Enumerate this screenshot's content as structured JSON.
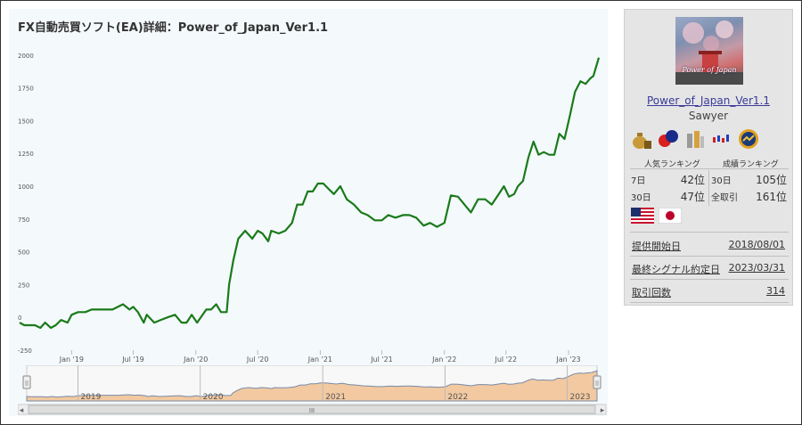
{
  "chart": {
    "title": "FX自動売買ソフト(EA)詳細：Power_of_Japan_Ver1.1",
    "line_color": "#1a7a1a"
  },
  "chart_data": {
    "type": "line",
    "title": "FX自動売買ソフト(EA)詳細：Power_of_Japan_Ver1.1",
    "xlabel": "",
    "ylabel": "",
    "y_ticks": [
      -250,
      0,
      250,
      500,
      750,
      1000,
      1250,
      1500,
      1750,
      2000
    ],
    "ylim": [
      -250,
      2080
    ],
    "x_ticks": [
      "Jan '19",
      "Jul '19",
      "Jan '20",
      "Jul '20",
      "Jan '21",
      "Jul '21",
      "Jan '22",
      "Jul '22",
      "Jan '23"
    ],
    "xlim": [
      "2018-08-01",
      "2023-03-31"
    ],
    "grid": false,
    "series": [
      {
        "x": [
          "2018-08-01",
          "2018-08-15",
          "2018-09-15",
          "2018-10-01",
          "2018-10-15",
          "2018-11-01",
          "2018-11-15",
          "2018-12-01",
          "2018-12-20",
          "2019-01-01",
          "2019-01-20",
          "2019-02-10",
          "2019-03-01",
          "2019-03-20",
          "2019-04-10",
          "2019-05-01",
          "2019-06-01",
          "2019-06-20",
          "2019-07-01",
          "2019-07-15",
          "2019-08-01",
          "2019-08-10",
          "2019-09-01",
          "2019-09-20",
          "2019-10-10",
          "2019-11-01",
          "2019-11-20",
          "2019-12-05",
          "2019-12-20",
          "2020-01-05",
          "2020-02-01",
          "2020-02-15",
          "2020-03-01",
          "2020-03-15",
          "2020-04-01",
          "2020-04-08",
          "2020-04-20",
          "2020-05-05",
          "2020-05-25",
          "2020-06-15",
          "2020-07-01",
          "2020-07-15",
          "2020-08-01",
          "2020-08-10",
          "2020-09-01",
          "2020-09-20",
          "2020-10-10",
          "2020-10-25",
          "2020-11-10",
          "2020-11-25",
          "2020-12-10",
          "2020-12-25",
          "2021-01-10",
          "2021-01-25",
          "2021-02-10",
          "2021-03-01",
          "2021-03-20",
          "2021-04-10",
          "2021-05-01",
          "2021-05-20",
          "2021-06-10",
          "2021-07-01",
          "2021-07-20",
          "2021-08-10",
          "2021-09-01",
          "2021-09-20",
          "2021-10-10",
          "2021-11-01",
          "2021-11-20",
          "2021-12-10",
          "2022-01-01",
          "2022-01-20",
          "2022-02-10",
          "2022-03-01",
          "2022-03-20",
          "2022-04-10",
          "2022-05-01",
          "2022-05-20",
          "2022-06-10",
          "2022-06-25",
          "2022-07-10",
          "2022-07-25",
          "2022-08-05",
          "2022-08-20",
          "2022-09-05",
          "2022-09-20",
          "2022-10-05",
          "2022-10-20",
          "2022-11-05",
          "2022-11-20",
          "2022-12-05",
          "2022-12-20",
          "2023-01-05",
          "2023-01-20",
          "2023-02-05",
          "2023-02-20",
          "2023-03-05",
          "2023-03-15",
          "2023-03-31"
        ],
        "y": [
          -40,
          -60,
          -60,
          -80,
          -40,
          -80,
          -60,
          -20,
          -40,
          20,
          40,
          40,
          60,
          60,
          60,
          60,
          100,
          60,
          80,
          40,
          -40,
          20,
          -40,
          -20,
          0,
          20,
          -40,
          -40,
          20,
          -40,
          60,
          60,
          100,
          40,
          40,
          250,
          430,
          600,
          660,
          600,
          660,
          640,
          580,
          660,
          640,
          660,
          720,
          860,
          860,
          960,
          960,
          1020,
          1020,
          980,
          940,
          1000,
          900,
          860,
          800,
          780,
          740,
          740,
          780,
          760,
          780,
          780,
          760,
          700,
          720,
          690,
          720,
          930,
          920,
          860,
          800,
          900,
          900,
          860,
          940,
          1000,
          920,
          940,
          1000,
          1040,
          1220,
          1340,
          1240,
          1260,
          1240,
          1240,
          1400,
          1360,
          1540,
          1720,
          1800,
          1780,
          1820,
          1840,
          1980
        ]
      }
    ]
  },
  "navigator": {
    "years": [
      "2019",
      "2020",
      "2021",
      "2022",
      "2023"
    ],
    "scroll_glyph": "III",
    "left_arrow": "◂",
    "right_arrow": "▸",
    "handle_glyph": "||"
  },
  "side": {
    "thumb_caption": "Power of Japan",
    "ea_name": "Power_of_Japan_Ver1.1",
    "author": "Sawyer",
    "badge_icons": [
      "money-bag-icon",
      "chat-icon",
      "bottles-icon",
      "candlestick-icon",
      "award-icon"
    ],
    "popularity_title": "人気ランキング",
    "performance_title": "成績ランキング",
    "pop_rows": [
      {
        "period": "7日",
        "rank": "42位"
      },
      {
        "period": "30日",
        "rank": "47位"
      }
    ],
    "perf_rows": [
      {
        "period": "30日",
        "rank": "105位"
      },
      {
        "period": "全取引",
        "rank": "161位"
      }
    ],
    "flags": [
      "us-flag-icon",
      "japan-flag-icon"
    ],
    "info": [
      {
        "label": "提供開始日",
        "value": "2018/08/01"
      },
      {
        "label": "最終シグナル約定日",
        "value": "2023/03/31"
      },
      {
        "label": "取引回数",
        "value": "314"
      }
    ],
    "colors": {
      "panel_bg": "#e5e5e5",
      "link": "#3a3a9a"
    }
  }
}
